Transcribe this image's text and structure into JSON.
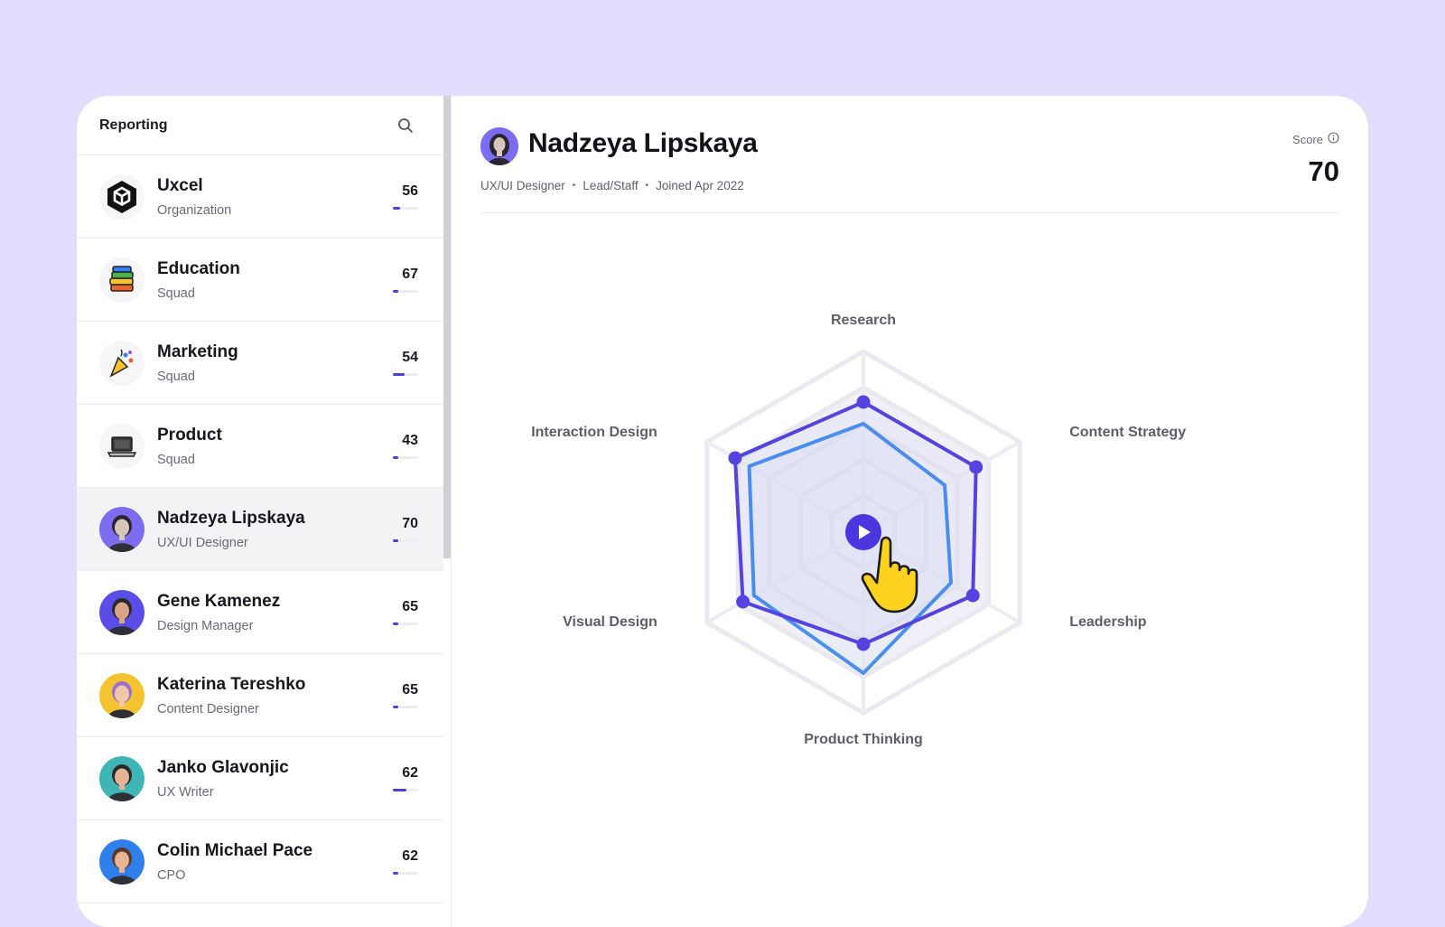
{
  "sidebar": {
    "title": "Reporting",
    "items": [
      {
        "name": "Uxcel",
        "sub": "Organization",
        "score": "56",
        "fill": 0.29,
        "avatar": "uxcel-logo-icon",
        "bar_color": "#4b3fd6"
      },
      {
        "name": "Education",
        "sub": "Squad",
        "score": "67",
        "fill": 0.2,
        "avatar": "books-icon",
        "bar_color": "#4b3fd6"
      },
      {
        "name": "Marketing",
        "sub": "Squad",
        "score": "54",
        "fill": 0.45,
        "avatar": "party-popper-icon",
        "bar_color": "#4b3fd6"
      },
      {
        "name": "Product",
        "sub": "Squad",
        "score": "43",
        "fill": 0.2,
        "avatar": "laptop-icon",
        "bar_color": "#4b3fd6"
      },
      {
        "name": "Nadzeya Lipskaya",
        "sub": "UX/UI Designer",
        "score": "70",
        "fill": 0.2,
        "avatar": "person-avatar",
        "selected": true,
        "bar_color": "#4b3fd6"
      },
      {
        "name": "Gene Kamenez",
        "sub": "Design Manager",
        "score": "65",
        "fill": 0.2,
        "avatar": "person-avatar",
        "bar_color": "#4b3fd6"
      },
      {
        "name": "Katerina Tereshko",
        "sub": "Content Designer",
        "score": "65",
        "fill": 0.2,
        "avatar": "person-avatar",
        "bar_color": "#4b3fd6"
      },
      {
        "name": "Janko Glavonjic",
        "sub": "UX Writer",
        "score": "62",
        "fill": 0.55,
        "avatar": "person-avatar",
        "bar_color": "#4b3fd6"
      },
      {
        "name": "Colin Michael Pace",
        "sub": "CPO",
        "score": "62",
        "fill": 0.2,
        "avatar": "person-avatar",
        "bar_color": "#4b3fd6"
      }
    ]
  },
  "profile": {
    "name": "Nadzeya Lipskaya",
    "role": "UX/UI Designer",
    "level": "Lead/Staff",
    "joined": "Joined Apr 2022",
    "score_label": "Score",
    "score": "70"
  },
  "radar": {
    "axes": [
      "Research",
      "Content Strategy",
      "Leadership",
      "Product Thinking",
      "Visual Design",
      "Interaction Design"
    ],
    "series": [
      {
        "values": [
          0.72,
          0.72,
          0.7,
          0.62,
          0.77,
          0.82
        ],
        "color": "#5543e0"
      },
      {
        "values": [
          0.6,
          0.52,
          0.56,
          0.78,
          0.7,
          0.73
        ],
        "color": "#4a90ef"
      }
    ],
    "rings": 4
  },
  "colors": {
    "accent": "#5543e0",
    "secondary": "#4a90ef",
    "background": "#e2dcfd"
  }
}
